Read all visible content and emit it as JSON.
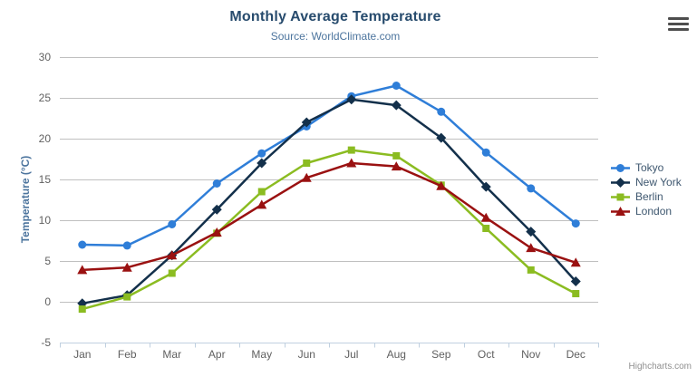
{
  "chart_data": {
    "type": "line",
    "title": "Monthly Average Temperature",
    "subtitle": "Source: WorldClimate.com",
    "categories": [
      "Jan",
      "Feb",
      "Mar",
      "Apr",
      "May",
      "Jun",
      "Jul",
      "Aug",
      "Sep",
      "Oct",
      "Nov",
      "Dec"
    ],
    "xlabel": "",
    "ylabel": "Temperature (°C)",
    "ylim": [
      -5,
      30
    ],
    "yticks": [
      -5,
      0,
      5,
      10,
      15,
      20,
      25,
      30
    ],
    "grid": true,
    "legend_position": "right",
    "series": [
      {
        "name": "Tokyo",
        "color": "#2f7ed8",
        "marker": "circle",
        "values": [
          7.0,
          6.9,
          9.5,
          14.5,
          18.2,
          21.5,
          25.2,
          26.5,
          23.3,
          18.3,
          13.9,
          9.6
        ]
      },
      {
        "name": "New York",
        "color": "#13304b",
        "marker": "diamond",
        "values": [
          -0.2,
          0.8,
          5.7,
          11.3,
          17.0,
          22.0,
          24.8,
          24.1,
          20.1,
          14.1,
          8.6,
          2.5
        ]
      },
      {
        "name": "Berlin",
        "color": "#8bbc21",
        "marker": "square",
        "values": [
          -0.9,
          0.6,
          3.5,
          8.4,
          13.5,
          17.0,
          18.6,
          17.9,
          14.3,
          9.0,
          3.9,
          1.0
        ]
      },
      {
        "name": "London",
        "color": "#9a1111",
        "marker": "triangle",
        "values": [
          3.9,
          4.2,
          5.7,
          8.5,
          11.9,
          15.2,
          17.0,
          16.6,
          14.2,
          10.3,
          6.6,
          4.8
        ]
      }
    ]
  },
  "credit": {
    "label": "Highcharts.com"
  },
  "icons": {
    "menu": "hamburger-menu-icon"
  },
  "colors": {
    "background": "#ffffff",
    "grid": "#c0c0c0",
    "axis_line": "#c0d0e0",
    "tick": "#c0d0e0",
    "title": "#274b6d",
    "subtitle": "#4d759e",
    "axis_title": "#4d759e",
    "axis_labels": "#606060",
    "legend_text": "#3e576f",
    "credit": "#909090",
    "menu_icon": "#4d4d4d"
  }
}
